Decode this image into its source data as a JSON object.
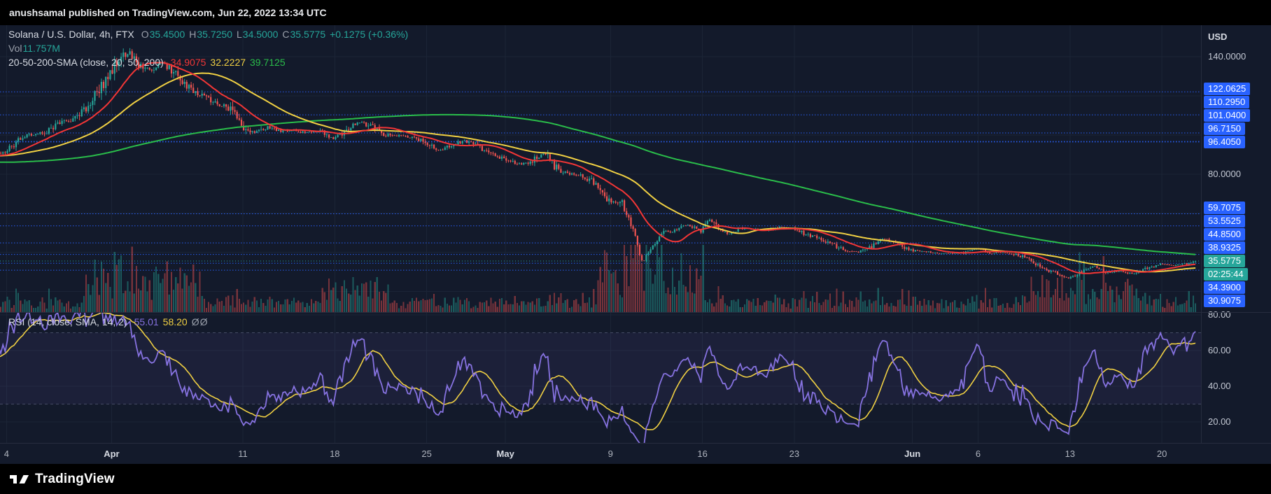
{
  "top_bar": {
    "publish_text": "anushsamal published on TradingView.com, Jun 22, 2022 13:34 UTC"
  },
  "legend": {
    "symbol_title": "Solana / U.S. Dollar, 4h, FTX",
    "ohlc": {
      "o_label": "O",
      "o_value": "35.4500",
      "h_label": "H",
      "h_value": "35.7250",
      "l_label": "L",
      "l_value": "34.5000",
      "c_label": "C",
      "c_value": "35.5775",
      "change": "+0.1275 (+0.36%)"
    },
    "vol_label": "Vol",
    "vol_value": "11.757M",
    "sma_title": "20-50-200-SMA (close, 20, 50, 200)",
    "sma20_value": "34.9075",
    "sma50_value": "32.2227",
    "sma200_value": "39.7125"
  },
  "rsi_legend": {
    "title": "RSI (14, close, SMA, 14, 2)",
    "rsi_value": "55.01",
    "ma_value": "58.20",
    "upper": "Ø",
    "lower": "Ø"
  },
  "price_axis": {
    "currency": "USD",
    "ticks": [
      {
        "label": "140.0000",
        "price": 140
      },
      {
        "label": "80.0000",
        "price": 80
      }
    ],
    "alert_levels": [
      {
        "label": "122.0625",
        "price": 122.0625
      },
      {
        "label": "110.2950",
        "price": 110.295
      },
      {
        "label": "101.0400",
        "price": 101.04
      },
      {
        "label": "96.7150",
        "price": 96.715
      },
      {
        "label": "96.4050",
        "price": 96.405
      },
      {
        "label": "59.7075",
        "price": 59.7075
      },
      {
        "label": "53.5525",
        "price": 53.5525
      },
      {
        "label": "44.8500",
        "price": 44.85
      },
      {
        "label": "38.9325",
        "price": 38.9325
      },
      {
        "label": "34.3900",
        "price": 34.39
      },
      {
        "label": "30.9075",
        "price": 30.9075
      }
    ],
    "last": {
      "label": "35.5775",
      "price": 35.5775,
      "countdown": "02:25:44"
    }
  },
  "rsi_axis": {
    "ticks": [
      {
        "label": "80.00",
        "value": 80
      },
      {
        "label": "60.00",
        "value": 60
      },
      {
        "label": "40.00",
        "value": 40
      },
      {
        "label": "20.00",
        "value": 20
      }
    ]
  },
  "time_axis": {
    "labels": [
      {
        "text": "4",
        "d": 0
      },
      {
        "text": "Apr",
        "d": 8,
        "month": true
      },
      {
        "text": "11",
        "d": 18
      },
      {
        "text": "18",
        "d": 25
      },
      {
        "text": "25",
        "d": 32
      },
      {
        "text": "May",
        "d": 38,
        "month": true
      },
      {
        "text": "9",
        "d": 46
      },
      {
        "text": "16",
        "d": 53
      },
      {
        "text": "23",
        "d": 60
      },
      {
        "text": "Jun",
        "d": 69,
        "month": true
      },
      {
        "text": "6",
        "d": 74
      },
      {
        "text": "13",
        "d": 81
      },
      {
        "text": "20",
        "d": 88
      }
    ]
  },
  "footer": {
    "brand": "TradingView"
  },
  "colors": {
    "background": "#131a2b",
    "panel": "#000000",
    "grid": "#1b2436",
    "up": "#26a69a",
    "down": "#ef5350",
    "vol_up": "rgba(38,166,154,0.45)",
    "vol_down": "rgba(239,83,80,0.45)",
    "sma20": "#f23636",
    "sma50": "#f0d043",
    "sma200": "#2abd4a",
    "level": "#2962ff",
    "last_label": "#26a69a",
    "rsi": "#8672e0",
    "rsi_ma": "#f0d043",
    "rsi_band": "rgba(134,114,224,0.08)",
    "rsi_dashed_line": "#4a5069",
    "separator": "#262c3e",
    "axis_text": "#c4c9d4",
    "bright_text": "#d7dbe3",
    "dim_text": "#9aa0ab"
  },
  "chart_data": {
    "type": "candlestick",
    "title": "Solana / U.S. Dollar",
    "symbol": "SOL/USD",
    "interval": "4h",
    "exchange": "FTX",
    "x_unit": "days_from_2022-03-24",
    "x_domain": [
      -0.5,
      90.98
    ],
    "price_domain": [
      9.48,
      156.1
    ],
    "rsi_domain": [
      8.24,
      81.57
    ],
    "candle_minutes": 240,
    "last_candle": {
      "o": 35.45,
      "h": 35.725,
      "l": 34.5,
      "c": 35.5775,
      "volume_label": "11.757M"
    },
    "current_values": {
      "sma20": 34.9075,
      "sma50": 32.2227,
      "sma200": 39.7125,
      "rsi": 55.01,
      "rsi_ma": 58.2
    },
    "close_keypoints": [
      [
        -40,
        102
      ],
      [
        -34,
        93
      ],
      [
        -30,
        88
      ],
      [
        -26,
        81
      ],
      [
        -22,
        84
      ],
      [
        -18,
        86
      ],
      [
        -15,
        82
      ],
      [
        -12,
        84
      ],
      [
        -9,
        88
      ],
      [
        -6,
        90
      ],
      [
        -3,
        88.5
      ],
      [
        -1,
        90
      ],
      [
        0,
        91.5
      ],
      [
        1,
        97
      ],
      [
        2,
        100.5
      ],
      [
        3,
        101
      ],
      [
        4,
        105.5
      ],
      [
        5,
        108
      ],
      [
        6,
        112
      ],
      [
        7,
        121
      ],
      [
        8,
        132
      ],
      [
        9,
        140
      ],
      [
        9.5,
        142.5
      ],
      [
        10,
        137
      ],
      [
        11,
        133
      ],
      [
        12,
        137
      ],
      [
        13,
        131
      ],
      [
        14,
        124
      ],
      [
        15,
        120
      ],
      [
        16,
        116
      ],
      [
        17,
        114
      ],
      [
        18,
        105
      ],
      [
        19,
        101
      ],
      [
        20,
        104
      ],
      [
        21,
        102
      ],
      [
        22,
        102.5
      ],
      [
        23,
        101
      ],
      [
        24,
        102
      ],
      [
        25,
        98
      ],
      [
        26,
        103
      ],
      [
        27,
        106.5
      ],
      [
        28,
        104
      ],
      [
        29,
        100
      ],
      [
        30,
        99.5
      ],
      [
        31,
        99
      ],
      [
        32,
        96
      ],
      [
        33,
        92
      ],
      [
        34,
        95
      ],
      [
        35,
        97
      ],
      [
        36,
        94
      ],
      [
        37,
        90
      ],
      [
        38,
        88
      ],
      [
        39,
        85
      ],
      [
        40,
        86
      ],
      [
        41,
        91
      ],
      [
        42,
        83
      ],
      [
        43,
        80
      ],
      [
        44,
        79
      ],
      [
        45,
        75
      ],
      [
        46,
        66
      ],
      [
        47,
        65
      ],
      [
        48,
        48
      ],
      [
        48.55,
        34
      ],
      [
        48.8,
        38
      ],
      [
        49,
        40
      ],
      [
        50,
        50
      ],
      [
        51,
        51
      ],
      [
        52,
        54
      ],
      [
        53,
        51
      ],
      [
        53.5,
        57
      ],
      [
        54,
        55
      ],
      [
        55,
        49
      ],
      [
        56,
        52
      ],
      [
        57,
        52
      ],
      [
        58,
        51
      ],
      [
        59,
        53
      ],
      [
        60,
        52.5
      ],
      [
        61,
        49
      ],
      [
        62,
        47.5
      ],
      [
        63,
        44
      ],
      [
        64,
        41
      ],
      [
        65,
        40
      ],
      [
        66,
        43
      ],
      [
        67,
        47
      ],
      [
        68,
        44.5
      ],
      [
        69,
        41
      ],
      [
        70,
        40.5
      ],
      [
        71,
        39.5
      ],
      [
        72,
        39.5
      ],
      [
        73,
        39.8
      ],
      [
        74,
        42
      ],
      [
        75,
        39.5
      ],
      [
        76,
        40
      ],
      [
        77,
        39
      ],
      [
        78,
        36.5
      ],
      [
        79,
        32
      ],
      [
        80,
        29.5
      ],
      [
        81,
        26.8
      ],
      [
        82,
        30.3
      ],
      [
        83,
        33
      ],
      [
        84,
        29.5
      ],
      [
        85,
        30.5
      ],
      [
        86,
        28.8
      ],
      [
        87,
        32
      ],
      [
        88,
        34
      ],
      [
        89,
        33.2
      ],
      [
        90,
        34.2
      ],
      [
        90.4,
        35.3
      ],
      [
        90.57,
        35.58
      ]
    ],
    "vol_spikes": [
      [
        6,
        15,
        3.0
      ],
      [
        24,
        29,
        2.2
      ],
      [
        45,
        53,
        3.2
      ],
      [
        78,
        86,
        1.9
      ]
    ],
    "overlays": {
      "sma_periods": [
        20,
        50,
        200
      ]
    },
    "rsi": {
      "period": 14,
      "ma_period": 14
    },
    "level_lines": [
      122.0625,
      110.295,
      101.04,
      96.715,
      96.405,
      59.7075,
      53.5525,
      44.85,
      38.9325,
      34.39,
      30.9075
    ],
    "grid_prices": [
      140,
      120,
      100,
      80,
      60,
      40,
      20
    ],
    "rsi_grid": [
      80,
      60,
      40,
      20
    ],
    "rsi_dashed": [
      70,
      30
    ],
    "rsi_band": [
      30,
      70
    ],
    "legend_position": "top-left",
    "grid": true,
    "seed": 11
  }
}
